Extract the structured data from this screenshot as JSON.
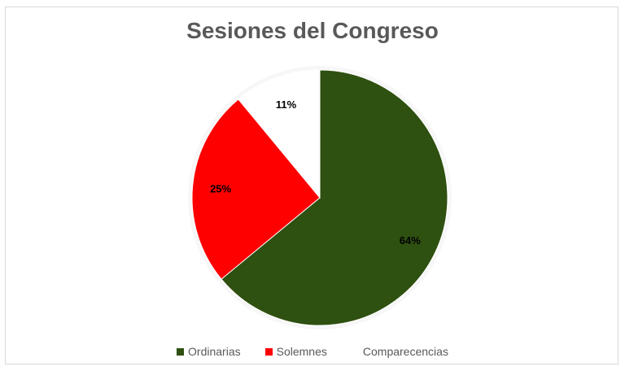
{
  "chart_data": {
    "type": "pie",
    "title": "Sesiones del Congreso",
    "slices": [
      {
        "name": "Ordinarias",
        "value": 64,
        "label": "64%",
        "color": "#2e5010"
      },
      {
        "name": "Solemnes",
        "value": 25,
        "label": "25%",
        "color": "#ff0000"
      },
      {
        "name": "Comparecencias",
        "value": 11,
        "label": "11%",
        "color": "#ffffff"
      }
    ],
    "legend_placement": "bottom"
  }
}
